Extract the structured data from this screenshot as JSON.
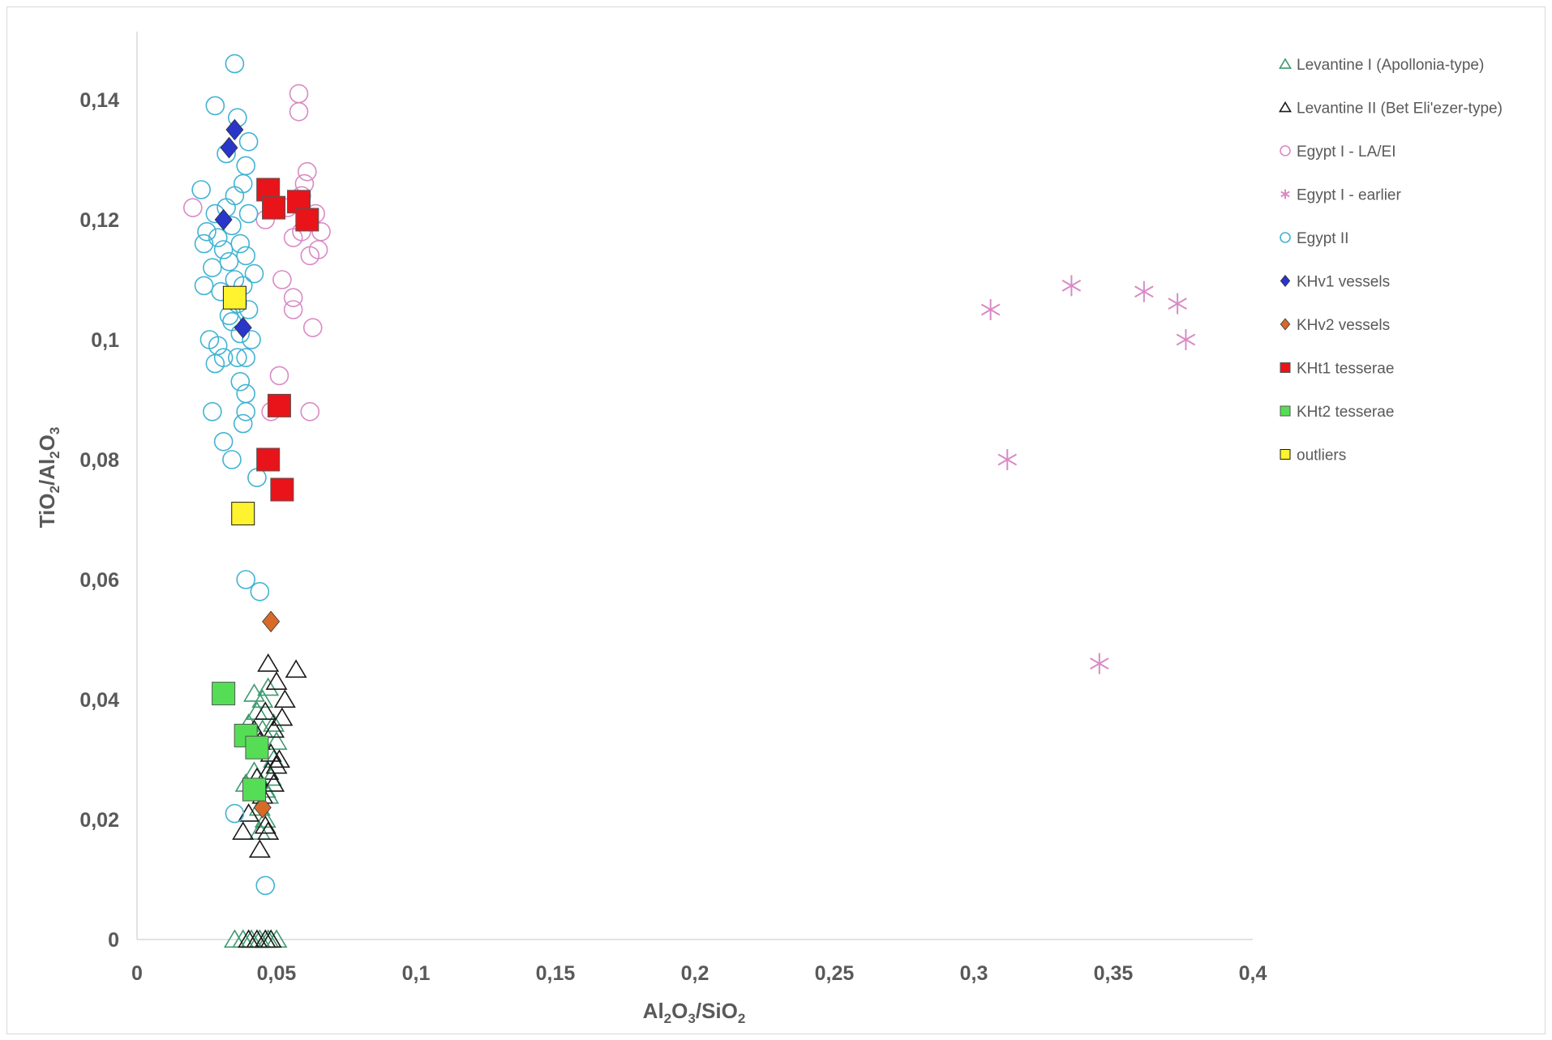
{
  "chart_data": {
    "type": "scatter",
    "xlim": [
      0,
      0.4
    ],
    "ylim": [
      0,
      0.15
    ],
    "x_ticks": [
      "0",
      "0,05",
      "0,1",
      "0,15",
      "0,2",
      "0,25",
      "0,3",
      "0,35",
      "0,4"
    ],
    "y_ticks": [
      "0",
      "0,02",
      "0,04",
      "0,06",
      "0,08",
      "0,1",
      "0,12",
      "0,14"
    ],
    "x_tick_values": [
      0,
      0.05,
      0.1,
      0.15,
      0.2,
      0.25,
      0.3,
      0.35,
      0.4
    ],
    "y_tick_values": [
      0,
      0.02,
      0.04,
      0.06,
      0.08,
      0.1,
      0.12,
      0.14
    ],
    "xlabel": {
      "main": "Al",
      "sub1": "2",
      "mid1": "O",
      "sub2": "3",
      "mid2": "/SiO",
      "sub3": "2"
    },
    "ylabel": {
      "main": "TiO",
      "sub1": "2",
      "mid1": "/Al",
      "sub2": "2",
      "mid2": "O",
      "sub3": "3"
    },
    "grid": false,
    "legend_position": "right",
    "series": [
      {
        "name": "Levantine I (Apollonia-type)",
        "marker": "triangle",
        "color": "#3d9a6e",
        "fill": "none",
        "points": [
          [
            0.035,
            0
          ],
          [
            0.038,
            0
          ],
          [
            0.041,
            0
          ],
          [
            0.044,
            0
          ],
          [
            0.047,
            0
          ],
          [
            0.05,
            0
          ],
          [
            0.04,
            0.036
          ],
          [
            0.043,
            0.032
          ],
          [
            0.045,
            0.04
          ],
          [
            0.042,
            0.028
          ],
          [
            0.046,
            0.025
          ],
          [
            0.044,
            0.022
          ],
          [
            0.047,
            0.042
          ],
          [
            0.049,
            0.03
          ],
          [
            0.041,
            0.034
          ],
          [
            0.043,
            0.038
          ],
          [
            0.048,
            0.027
          ],
          [
            0.05,
            0.033
          ],
          [
            0.046,
            0.02
          ],
          [
            0.039,
            0.026
          ],
          [
            0.045,
            0.035
          ],
          [
            0.042,
            0.041
          ],
          [
            0.047,
            0.024
          ],
          [
            0.044,
            0.018
          ],
          [
            0.049,
            0.036
          ]
        ]
      },
      {
        "name": "Levantine II (Bet Eli'ezer-type)",
        "marker": "triangle",
        "color": "#1a1a1a",
        "fill": "none",
        "points": [
          [
            0.04,
            0
          ],
          [
            0.043,
            0
          ],
          [
            0.046,
            0
          ],
          [
            0.048,
            0
          ],
          [
            0.047,
            0.046
          ],
          [
            0.057,
            0.045
          ],
          [
            0.05,
            0.043
          ],
          [
            0.053,
            0.04
          ],
          [
            0.046,
            0.038
          ],
          [
            0.052,
            0.037
          ],
          [
            0.049,
            0.035
          ],
          [
            0.044,
            0.033
          ],
          [
            0.048,
            0.031
          ],
          [
            0.051,
            0.03
          ],
          [
            0.047,
            0.028
          ],
          [
            0.043,
            0.027
          ],
          [
            0.049,
            0.026
          ],
          [
            0.045,
            0.024
          ],
          [
            0.04,
            0.021
          ],
          [
            0.046,
            0.019
          ],
          [
            0.038,
            0.018
          ],
          [
            0.047,
            0.018
          ],
          [
            0.044,
            0.015
          ],
          [
            0.05,
            0.029
          ],
          [
            0.042,
            0.035
          ]
        ]
      },
      {
        "name": "Egypt I - LA/EI",
        "marker": "circle",
        "color": "#d98ac5",
        "fill": "none",
        "points": [
          [
            0.058,
            0.141
          ],
          [
            0.058,
            0.138
          ],
          [
            0.061,
            0.128
          ],
          [
            0.06,
            0.126
          ],
          [
            0.059,
            0.124
          ],
          [
            0.064,
            0.121
          ],
          [
            0.066,
            0.118
          ],
          [
            0.062,
            0.114
          ],
          [
            0.065,
            0.115
          ],
          [
            0.056,
            0.117
          ],
          [
            0.046,
            0.12
          ],
          [
            0.052,
            0.11
          ],
          [
            0.056,
            0.107
          ],
          [
            0.056,
            0.105
          ],
          [
            0.063,
            0.102
          ],
          [
            0.051,
            0.094
          ],
          [
            0.048,
            0.088
          ],
          [
            0.062,
            0.088
          ],
          [
            0.02,
            0.122
          ],
          [
            0.059,
            0.118
          ],
          [
            0.054,
            0.122
          ]
        ]
      },
      {
        "name": "Egypt I - earlier",
        "marker": "star",
        "color": "#d98ac5",
        "fill": "none",
        "points": [
          [
            0.306,
            0.105
          ],
          [
            0.335,
            0.109
          ],
          [
            0.361,
            0.108
          ],
          [
            0.373,
            0.106
          ],
          [
            0.376,
            0.1
          ],
          [
            0.312,
            0.08
          ],
          [
            0.345,
            0.046
          ]
        ]
      },
      {
        "name": "Egypt II",
        "marker": "circle",
        "color": "#41b3d3",
        "fill": "none",
        "points": [
          [
            0.035,
            0.146
          ],
          [
            0.028,
            0.139
          ],
          [
            0.036,
            0.137
          ],
          [
            0.04,
            0.133
          ],
          [
            0.032,
            0.131
          ],
          [
            0.039,
            0.129
          ],
          [
            0.038,
            0.126
          ],
          [
            0.023,
            0.125
          ],
          [
            0.035,
            0.124
          ],
          [
            0.032,
            0.122
          ],
          [
            0.04,
            0.121
          ],
          [
            0.028,
            0.121
          ],
          [
            0.025,
            0.118
          ],
          [
            0.034,
            0.119
          ],
          [
            0.029,
            0.117
          ],
          [
            0.024,
            0.116
          ],
          [
            0.031,
            0.115
          ],
          [
            0.037,
            0.116
          ],
          [
            0.039,
            0.114
          ],
          [
            0.033,
            0.113
          ],
          [
            0.027,
            0.112
          ],
          [
            0.035,
            0.11
          ],
          [
            0.042,
            0.111
          ],
          [
            0.038,
            0.109
          ],
          [
            0.03,
            0.108
          ],
          [
            0.036,
            0.106
          ],
          [
            0.04,
            0.105
          ],
          [
            0.034,
            0.103
          ],
          [
            0.037,
            0.101
          ],
          [
            0.026,
            0.1
          ],
          [
            0.029,
            0.099
          ],
          [
            0.031,
            0.097
          ],
          [
            0.036,
            0.097
          ],
          [
            0.039,
            0.097
          ],
          [
            0.028,
            0.096
          ],
          [
            0.037,
            0.093
          ],
          [
            0.039,
            0.091
          ],
          [
            0.027,
            0.088
          ],
          [
            0.039,
            0.088
          ],
          [
            0.038,
            0.086
          ],
          [
            0.031,
            0.083
          ],
          [
            0.034,
            0.08
          ],
          [
            0.043,
            0.077
          ],
          [
            0.039,
            0.06
          ],
          [
            0.044,
            0.058
          ],
          [
            0.035,
            0.021
          ],
          [
            0.046,
            0.009
          ],
          [
            0.024,
            0.109
          ],
          [
            0.033,
            0.104
          ],
          [
            0.041,
            0.1
          ]
        ]
      },
      {
        "name": "KHv1 vessels",
        "marker": "diamond",
        "color": "#2a35c9",
        "fill": "#2a35c9",
        "points": [
          [
            0.035,
            0.135
          ],
          [
            0.033,
            0.132
          ],
          [
            0.031,
            0.12
          ],
          [
            0.038,
            0.102
          ]
        ]
      },
      {
        "name": "KHv2 vessels",
        "marker": "diamond",
        "color": "#d86a28",
        "fill": "#d86a28",
        "points": [
          [
            0.048,
            0.053
          ],
          [
            0.045,
            0.022
          ]
        ]
      },
      {
        "name": "KHt1 tesserae",
        "marker": "square",
        "color": "#e8141a",
        "fill": "#e8141a",
        "points": [
          [
            0.047,
            0.125
          ],
          [
            0.049,
            0.122
          ],
          [
            0.058,
            0.123
          ],
          [
            0.061,
            0.12
          ],
          [
            0.051,
            0.089
          ],
          [
            0.047,
            0.08
          ],
          [
            0.052,
            0.075
          ]
        ]
      },
      {
        "name": "KHt2 tesserae",
        "marker": "square",
        "color": "#55de55",
        "fill": "#55de55",
        "points": [
          [
            0.031,
            0.041
          ],
          [
            0.039,
            0.034
          ],
          [
            0.043,
            0.032
          ],
          [
            0.042,
            0.025
          ]
        ]
      },
      {
        "name": "outliers",
        "marker": "square",
        "color": "#1a1a1a",
        "fill": "#fff22e",
        "points": [
          [
            0.035,
            0.107
          ],
          [
            0.038,
            0.071
          ]
        ]
      }
    ]
  }
}
